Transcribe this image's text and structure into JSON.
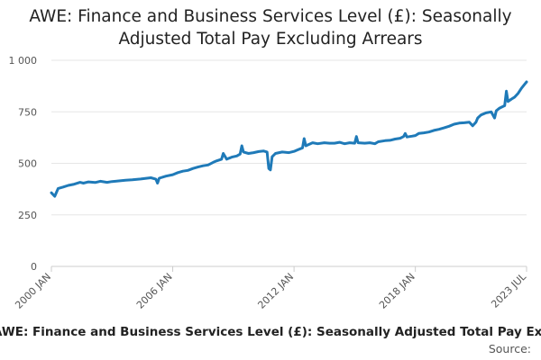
{
  "chart_data": {
    "type": "line",
    "title": "AWE: Finance and Business Services Level (£): Seasonally Adjusted Total Pay Excluding Arrears",
    "xlabel": "",
    "ylabel": "",
    "x_range": [
      "2000 JAN",
      "2023 JUL"
    ],
    "ylim": [
      0,
      1000
    ],
    "y_ticks": [
      0,
      250,
      500,
      750,
      1000
    ],
    "y_tick_labels": [
      "0",
      "250",
      "500",
      "750",
      "1 000"
    ],
    "x_ticks": [
      {
        "label": "2000 JAN",
        "year": 2000,
        "month": 1
      },
      {
        "label": "2006 JAN",
        "year": 2006,
        "month": 1
      },
      {
        "label": "2012 JAN",
        "year": 2012,
        "month": 1
      },
      {
        "label": "2018 JAN",
        "year": 2018,
        "month": 1
      },
      {
        "label": "2023 JUL",
        "year": 2023,
        "month": 7
      }
    ],
    "grid": true,
    "legend": "none",
    "series": [
      {
        "color": "#1f7ab8",
        "points": [
          [
            "2000-01",
            357
          ],
          [
            "2000-03",
            340
          ],
          [
            "2000-05",
            378
          ],
          [
            "2000-08",
            385
          ],
          [
            "2000-11",
            393
          ],
          [
            "2001-02",
            398
          ],
          [
            "2001-06",
            408
          ],
          [
            "2001-08",
            404
          ],
          [
            "2001-11",
            410
          ],
          [
            "2002-03",
            407
          ],
          [
            "2002-06",
            413
          ],
          [
            "2002-10",
            408
          ],
          [
            "2003-01",
            412
          ],
          [
            "2003-05",
            415
          ],
          [
            "2003-09",
            418
          ],
          [
            "2004-01",
            420
          ],
          [
            "2004-06",
            424
          ],
          [
            "2004-12",
            430
          ],
          [
            "2005-03",
            423
          ],
          [
            "2005-04",
            404
          ],
          [
            "2005-05",
            428
          ],
          [
            "2005-09",
            438
          ],
          [
            "2006-01",
            445
          ],
          [
            "2006-04",
            455
          ],
          [
            "2006-07",
            462
          ],
          [
            "2006-10",
            466
          ],
          [
            "2007-01",
            475
          ],
          [
            "2007-04",
            482
          ],
          [
            "2007-07",
            488
          ],
          [
            "2007-10",
            492
          ],
          [
            "2008-01",
            505
          ],
          [
            "2008-03",
            512
          ],
          [
            "2008-06",
            520
          ],
          [
            "2008-07",
            548
          ],
          [
            "2008-09",
            520
          ],
          [
            "2008-12",
            530
          ],
          [
            "2009-03",
            536
          ],
          [
            "2009-05",
            545
          ],
          [
            "2009-06",
            585
          ],
          [
            "2009-07",
            555
          ],
          [
            "2009-10",
            548
          ],
          [
            "2010-01",
            552
          ],
          [
            "2010-04",
            557
          ],
          [
            "2010-07",
            560
          ],
          [
            "2010-09",
            555
          ],
          [
            "2010-10",
            475
          ],
          [
            "2010-11",
            468
          ],
          [
            "2010-12",
            532
          ],
          [
            "2011-02",
            548
          ],
          [
            "2011-06",
            555
          ],
          [
            "2011-10",
            552
          ],
          [
            "2012-01",
            558
          ],
          [
            "2012-03",
            565
          ],
          [
            "2012-06",
            575
          ],
          [
            "2012-07",
            620
          ],
          [
            "2012-08",
            585
          ],
          [
            "2012-12",
            600
          ],
          [
            "2013-03",
            595
          ],
          [
            "2013-07",
            600
          ],
          [
            "2013-10",
            598
          ],
          [
            "2014-01",
            598
          ],
          [
            "2014-04",
            602
          ],
          [
            "2014-07",
            595
          ],
          [
            "2014-10",
            600
          ],
          [
            "2015-01",
            598
          ],
          [
            "2015-02",
            630
          ],
          [
            "2015-03",
            600
          ],
          [
            "2015-07",
            598
          ],
          [
            "2015-10",
            600
          ],
          [
            "2016-01",
            595
          ],
          [
            "2016-03",
            605
          ],
          [
            "2016-07",
            610
          ],
          [
            "2016-10",
            612
          ],
          [
            "2017-01",
            618
          ],
          [
            "2017-04",
            622
          ],
          [
            "2017-06",
            630
          ],
          [
            "2017-07",
            645
          ],
          [
            "2017-08",
            628
          ],
          [
            "2017-11",
            632
          ],
          [
            "2018-01",
            635
          ],
          [
            "2018-03",
            645
          ],
          [
            "2018-06",
            648
          ],
          [
            "2018-09",
            652
          ],
          [
            "2018-12",
            660
          ],
          [
            "2019-03",
            665
          ],
          [
            "2019-06",
            672
          ],
          [
            "2019-09",
            680
          ],
          [
            "2019-12",
            690
          ],
          [
            "2020-03",
            695
          ],
          [
            "2020-06",
            697
          ],
          [
            "2020-09",
            700
          ],
          [
            "2020-11",
            682
          ],
          [
            "2021-01",
            700
          ],
          [
            "2021-02",
            720
          ],
          [
            "2021-04",
            735
          ],
          [
            "2021-07",
            745
          ],
          [
            "2021-10",
            750
          ],
          [
            "2021-12",
            720
          ],
          [
            "2022-01",
            755
          ],
          [
            "2022-03",
            768
          ],
          [
            "2022-06",
            780
          ],
          [
            "2022-07",
            850
          ],
          [
            "2022-08",
            800
          ],
          [
            "2022-10",
            812
          ],
          [
            "2022-12",
            822
          ],
          [
            "2023-02",
            840
          ],
          [
            "2023-04",
            865
          ],
          [
            "2023-06",
            885
          ],
          [
            "2023-07",
            895
          ]
        ]
      }
    ]
  },
  "footer": {
    "title": "AWE: Finance and Business Services Level (£): Seasonally Adjusted Total Pay Excluding Arrears",
    "source_label": "Source:"
  }
}
